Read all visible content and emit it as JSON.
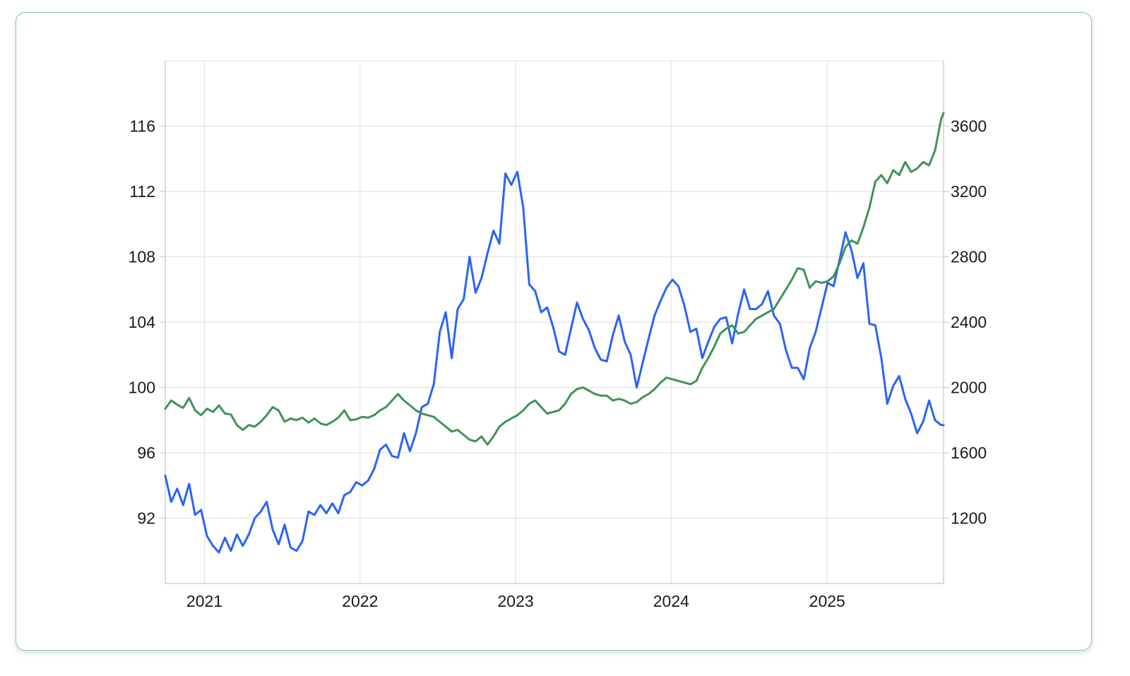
{
  "chart_data": {
    "type": "line",
    "title": "",
    "xlabel": "",
    "ylabel_left": "",
    "ylabel_right": "",
    "grid": true,
    "legend": "none",
    "x_ticks": [
      "2021",
      "2022",
      "2023",
      "2024",
      "2025"
    ],
    "x_range": [
      "2020-10-01",
      "2025-10-01"
    ],
    "y_left": {
      "ticks": [
        "92",
        "96",
        "100",
        "104",
        "108",
        "112",
        "116"
      ],
      "range": [
        88,
        120
      ]
    },
    "y_right": {
      "ticks": [
        "1200",
        "1600",
        "2000",
        "2400",
        "2800",
        "3200",
        "3600"
      ],
      "range": [
        800,
        4000
      ]
    },
    "series": [
      {
        "axis": "left",
        "color": "#2a63f5",
        "points": [
          [
            "2020-10-01",
            94.6
          ],
          [
            "2020-10-15",
            93.0
          ],
          [
            "2020-10-29",
            93.8
          ],
          [
            "2020-11-12",
            92.8
          ],
          [
            "2020-11-26",
            94.1
          ],
          [
            "2020-12-10",
            92.2
          ],
          [
            "2020-12-24",
            92.5
          ],
          [
            "2021-01-07",
            90.9
          ],
          [
            "2021-01-21",
            90.3
          ],
          [
            "2021-02-04",
            89.9
          ],
          [
            "2021-02-18",
            90.8
          ],
          [
            "2021-03-04",
            90.0
          ],
          [
            "2021-03-18",
            91.0
          ],
          [
            "2021-04-01",
            90.3
          ],
          [
            "2021-04-15",
            91.0
          ],
          [
            "2021-04-29",
            92.0
          ],
          [
            "2021-05-13",
            92.4
          ],
          [
            "2021-05-27",
            93.0
          ],
          [
            "2021-06-10",
            91.3
          ],
          [
            "2021-06-24",
            90.4
          ],
          [
            "2021-07-08",
            91.6
          ],
          [
            "2021-07-22",
            90.2
          ],
          [
            "2021-08-05",
            90.0
          ],
          [
            "2021-08-19",
            90.6
          ],
          [
            "2021-09-02",
            92.4
          ],
          [
            "2021-09-16",
            92.2
          ],
          [
            "2021-09-30",
            92.8
          ],
          [
            "2021-10-14",
            92.3
          ],
          [
            "2021-10-28",
            92.9
          ],
          [
            "2021-11-11",
            92.3
          ],
          [
            "2021-11-25",
            93.4
          ],
          [
            "2021-12-09",
            93.6
          ],
          [
            "2021-12-23",
            94.2
          ],
          [
            "2022-01-06",
            94.0
          ],
          [
            "2022-01-20",
            94.3
          ],
          [
            "2022-02-03",
            95.0
          ],
          [
            "2022-02-17",
            96.2
          ],
          [
            "2022-03-03",
            96.5
          ],
          [
            "2022-03-17",
            95.8
          ],
          [
            "2022-03-31",
            95.7
          ],
          [
            "2022-04-14",
            97.2
          ],
          [
            "2022-04-28",
            96.1
          ],
          [
            "2022-05-12",
            97.2
          ],
          [
            "2022-05-26",
            98.8
          ],
          [
            "2022-06-09",
            99.0
          ],
          [
            "2022-06-23",
            100.2
          ],
          [
            "2022-07-07",
            103.4
          ],
          [
            "2022-07-21",
            104.6
          ],
          [
            "2022-08-04",
            101.8
          ],
          [
            "2022-08-18",
            104.8
          ],
          [
            "2022-09-01",
            105.4
          ],
          [
            "2022-09-15",
            108.0
          ],
          [
            "2022-09-29",
            105.8
          ],
          [
            "2022-10-13",
            106.7
          ],
          [
            "2022-10-27",
            108.2
          ],
          [
            "2022-11-10",
            109.6
          ],
          [
            "2022-11-24",
            108.8
          ],
          [
            "2022-12-08",
            113.1
          ],
          [
            "2022-12-22",
            112.4
          ],
          [
            "2023-01-05",
            113.2
          ],
          [
            "2023-01-19",
            111.0
          ],
          [
            "2023-02-02",
            106.3
          ],
          [
            "2023-02-16",
            105.9
          ],
          [
            "2023-03-02",
            104.6
          ],
          [
            "2023-03-16",
            104.9
          ],
          [
            "2023-03-30",
            103.7
          ],
          [
            "2023-04-13",
            102.2
          ],
          [
            "2023-04-27",
            102.0
          ],
          [
            "2023-05-11",
            103.6
          ],
          [
            "2023-05-25",
            105.2
          ],
          [
            "2023-06-08",
            104.2
          ],
          [
            "2023-06-22",
            103.5
          ],
          [
            "2023-07-06",
            102.4
          ],
          [
            "2023-07-20",
            101.7
          ],
          [
            "2023-08-03",
            101.6
          ],
          [
            "2023-08-17",
            103.2
          ],
          [
            "2023-08-31",
            104.4
          ],
          [
            "2023-09-14",
            102.8
          ],
          [
            "2023-09-28",
            102.0
          ],
          [
            "2023-10-12",
            100.0
          ],
          [
            "2023-10-26",
            101.5
          ],
          [
            "2023-11-09",
            103.0
          ],
          [
            "2023-11-23",
            104.4
          ],
          [
            "2023-12-07",
            105.3
          ],
          [
            "2023-12-21",
            106.1
          ],
          [
            "2024-01-04",
            106.6
          ],
          [
            "2024-01-18",
            106.2
          ],
          [
            "2024-02-01",
            105.0
          ],
          [
            "2024-02-15",
            103.4
          ],
          [
            "2024-02-29",
            103.6
          ],
          [
            "2024-03-14",
            101.8
          ],
          [
            "2024-03-28",
            102.8
          ],
          [
            "2024-04-11",
            103.7
          ],
          [
            "2024-04-25",
            104.2
          ],
          [
            "2024-05-09",
            104.3
          ],
          [
            "2024-05-23",
            102.7
          ],
          [
            "2024-06-06",
            104.5
          ],
          [
            "2024-06-20",
            106.0
          ],
          [
            "2024-07-04",
            104.8
          ],
          [
            "2024-07-18",
            104.8
          ],
          [
            "2024-08-01",
            105.1
          ],
          [
            "2024-08-15",
            105.9
          ],
          [
            "2024-08-29",
            104.4
          ],
          [
            "2024-09-12",
            103.9
          ],
          [
            "2024-09-26",
            102.3
          ],
          [
            "2024-10-10",
            101.2
          ],
          [
            "2024-10-24",
            101.2
          ],
          [
            "2024-11-07",
            100.5
          ],
          [
            "2024-11-21",
            102.4
          ],
          [
            "2024-12-05",
            103.4
          ],
          [
            "2024-12-19",
            104.9
          ],
          [
            "2025-01-02",
            106.4
          ],
          [
            "2025-01-16",
            106.2
          ],
          [
            "2025-01-30",
            107.8
          ],
          [
            "2025-02-13",
            109.5
          ],
          [
            "2025-02-27",
            108.4
          ],
          [
            "2025-03-13",
            106.7
          ],
          [
            "2025-03-27",
            107.6
          ],
          [
            "2025-04-10",
            103.9
          ],
          [
            "2025-04-24",
            103.8
          ],
          [
            "2025-05-08",
            101.8
          ],
          [
            "2025-05-22",
            99.0
          ],
          [
            "2025-06-05",
            100.1
          ],
          [
            "2025-06-19",
            100.7
          ],
          [
            "2025-07-03",
            99.3
          ],
          [
            "2025-07-17",
            98.4
          ],
          [
            "2025-07-31",
            97.2
          ],
          [
            "2025-08-14",
            97.9
          ],
          [
            "2025-08-28",
            99.2
          ],
          [
            "2025-09-11",
            98.0
          ],
          [
            "2025-09-25",
            97.7
          ],
          [
            "2025-10-01",
            97.7
          ]
        ]
      },
      {
        "axis": "right",
        "color": "#3f9357",
        "points": [
          [
            "2020-10-01",
            1870
          ],
          [
            "2020-10-15",
            1920
          ],
          [
            "2020-10-29",
            1895
          ],
          [
            "2020-11-12",
            1875
          ],
          [
            "2020-11-26",
            1935
          ],
          [
            "2020-12-10",
            1860
          ],
          [
            "2020-12-24",
            1830
          ],
          [
            "2021-01-07",
            1870
          ],
          [
            "2021-01-21",
            1850
          ],
          [
            "2021-02-04",
            1890
          ],
          [
            "2021-02-18",
            1840
          ],
          [
            "2021-03-04",
            1835
          ],
          [
            "2021-03-18",
            1770
          ],
          [
            "2021-04-01",
            1740
          ],
          [
            "2021-04-15",
            1770
          ],
          [
            "2021-04-29",
            1760
          ],
          [
            "2021-05-13",
            1790
          ],
          [
            "2021-05-27",
            1830
          ],
          [
            "2021-06-10",
            1880
          ],
          [
            "2021-06-24",
            1860
          ],
          [
            "2021-07-08",
            1790
          ],
          [
            "2021-07-22",
            1810
          ],
          [
            "2021-08-05",
            1800
          ],
          [
            "2021-08-19",
            1815
          ],
          [
            "2021-09-02",
            1785
          ],
          [
            "2021-09-16",
            1810
          ],
          [
            "2021-09-30",
            1780
          ],
          [
            "2021-10-14",
            1770
          ],
          [
            "2021-10-28",
            1790
          ],
          [
            "2021-11-11",
            1815
          ],
          [
            "2021-11-25",
            1860
          ],
          [
            "2021-12-09",
            1800
          ],
          [
            "2021-12-23",
            1805
          ],
          [
            "2022-01-06",
            1820
          ],
          [
            "2022-01-20",
            1815
          ],
          [
            "2022-02-03",
            1830
          ],
          [
            "2022-02-17",
            1860
          ],
          [
            "2022-03-03",
            1880
          ],
          [
            "2022-03-17",
            1920
          ],
          [
            "2022-03-31",
            1960
          ],
          [
            "2022-04-14",
            1920
          ],
          [
            "2022-04-28",
            1890
          ],
          [
            "2022-05-12",
            1860
          ],
          [
            "2022-05-26",
            1840
          ],
          [
            "2022-06-09",
            1830
          ],
          [
            "2022-06-23",
            1820
          ],
          [
            "2022-07-07",
            1790
          ],
          [
            "2022-07-21",
            1760
          ],
          [
            "2022-08-04",
            1730
          ],
          [
            "2022-08-18",
            1740
          ],
          [
            "2022-09-01",
            1710
          ],
          [
            "2022-09-15",
            1680
          ],
          [
            "2022-09-29",
            1670
          ],
          [
            "2022-10-13",
            1700
          ],
          [
            "2022-10-27",
            1650
          ],
          [
            "2022-11-10",
            1700
          ],
          [
            "2022-11-24",
            1760
          ],
          [
            "2022-12-08",
            1790
          ],
          [
            "2022-12-22",
            1810
          ],
          [
            "2023-01-05",
            1830
          ],
          [
            "2023-01-19",
            1860
          ],
          [
            "2023-02-02",
            1900
          ],
          [
            "2023-02-16",
            1920
          ],
          [
            "2023-03-02",
            1880
          ],
          [
            "2023-03-16",
            1840
          ],
          [
            "2023-03-30",
            1850
          ],
          [
            "2023-04-13",
            1860
          ],
          [
            "2023-04-27",
            1900
          ],
          [
            "2023-05-11",
            1960
          ],
          [
            "2023-05-25",
            1990
          ],
          [
            "2023-06-08",
            2000
          ],
          [
            "2023-06-22",
            1980
          ],
          [
            "2023-07-06",
            1960
          ],
          [
            "2023-07-20",
            1950
          ],
          [
            "2023-08-03",
            1950
          ],
          [
            "2023-08-17",
            1920
          ],
          [
            "2023-08-31",
            1930
          ],
          [
            "2023-09-14",
            1920
          ],
          [
            "2023-09-28",
            1900
          ],
          [
            "2023-10-12",
            1910
          ],
          [
            "2023-10-26",
            1940
          ],
          [
            "2023-11-09",
            1960
          ],
          [
            "2023-11-23",
            1990
          ],
          [
            "2023-12-07",
            2030
          ],
          [
            "2023-12-21",
            2060
          ],
          [
            "2024-01-04",
            2050
          ],
          [
            "2024-01-18",
            2040
          ],
          [
            "2024-02-01",
            2030
          ],
          [
            "2024-02-15",
            2020
          ],
          [
            "2024-02-29",
            2040
          ],
          [
            "2024-03-14",
            2120
          ],
          [
            "2024-03-28",
            2180
          ],
          [
            "2024-04-11",
            2250
          ],
          [
            "2024-04-25",
            2330
          ],
          [
            "2024-05-09",
            2360
          ],
          [
            "2024-05-23",
            2380
          ],
          [
            "2024-06-06",
            2330
          ],
          [
            "2024-06-20",
            2340
          ],
          [
            "2024-07-04",
            2380
          ],
          [
            "2024-07-18",
            2420
          ],
          [
            "2024-08-01",
            2440
          ],
          [
            "2024-08-15",
            2460
          ],
          [
            "2024-08-29",
            2480
          ],
          [
            "2024-09-12",
            2540
          ],
          [
            "2024-09-26",
            2600
          ],
          [
            "2024-10-10",
            2660
          ],
          [
            "2024-10-24",
            2730
          ],
          [
            "2024-11-07",
            2720
          ],
          [
            "2024-11-21",
            2610
          ],
          [
            "2024-12-05",
            2650
          ],
          [
            "2024-12-19",
            2640
          ],
          [
            "2025-01-02",
            2650
          ],
          [
            "2025-01-16",
            2680
          ],
          [
            "2025-01-30",
            2760
          ],
          [
            "2025-02-13",
            2860
          ],
          [
            "2025-02-27",
            2900
          ],
          [
            "2025-03-13",
            2880
          ],
          [
            "2025-03-27",
            2980
          ],
          [
            "2025-04-10",
            3100
          ],
          [
            "2025-04-24",
            3260
          ],
          [
            "2025-05-08",
            3300
          ],
          [
            "2025-05-22",
            3250
          ],
          [
            "2025-06-05",
            3330
          ],
          [
            "2025-06-19",
            3300
          ],
          [
            "2025-07-03",
            3380
          ],
          [
            "2025-07-17",
            3320
          ],
          [
            "2025-07-31",
            3340
          ],
          [
            "2025-08-14",
            3380
          ],
          [
            "2025-08-28",
            3360
          ],
          [
            "2025-09-11",
            3450
          ],
          [
            "2025-09-25",
            3640
          ],
          [
            "2025-10-01",
            3680
          ]
        ]
      }
    ]
  }
}
